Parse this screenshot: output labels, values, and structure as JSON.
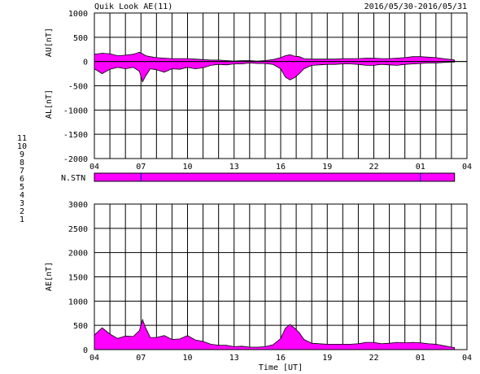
{
  "header": {
    "title": "Quik Look AE(11)",
    "date_range": "2016/05/30-2016/05/31"
  },
  "colors": {
    "fill": "#ff00ff",
    "axis": "#000000",
    "grid": "#000000"
  },
  "stations": {
    "label": "N.STN",
    "legend": [
      {
        "num": "11",
        "color": "#00e0e0"
      },
      {
        "num": "10",
        "color": "#ff00ff"
      },
      {
        "num": "9",
        "color": "#0000ff"
      },
      {
        "num": "8",
        "color": "#ffd000"
      },
      {
        "num": "7",
        "color": "#a0e000"
      },
      {
        "num": "6",
        "color": "#e00000"
      },
      {
        "num": "5",
        "color": "#c0c0c0"
      },
      {
        "num": "4",
        "color": "#a0a0a0"
      },
      {
        "num": "3",
        "color": "#00a0a0"
      },
      {
        "num": "2",
        "color": "#a000a0"
      },
      {
        "num": "1",
        "color": "#0000c0"
      }
    ]
  },
  "chart_data": [
    {
      "type": "area",
      "panel": "AU/AL",
      "ylabel_top": "AU[nT]",
      "ylabel_bottom": "AL[nT]",
      "ylim": [
        -2000,
        1000
      ],
      "yticks": [
        1000,
        500,
        0,
        -500,
        -1000,
        -1500,
        -2000
      ],
      "x_ticklabels": [
        "04",
        "07",
        "10",
        "13",
        "16",
        "19",
        "22",
        "01",
        "04"
      ],
      "x_hours": [
        4,
        7,
        10,
        13,
        16,
        19,
        22,
        25,
        28
      ],
      "grid": true,
      "x": [
        4.0,
        4.5,
        5.0,
        5.5,
        6.0,
        6.5,
        6.9,
        7.1,
        7.3,
        7.6,
        8.0,
        8.5,
        9.0,
        9.5,
        10.0,
        10.5,
        11.0,
        11.5,
        12.0,
        12.5,
        13.0,
        13.5,
        14.0,
        14.5,
        15.0,
        15.5,
        16.0,
        16.3,
        16.6,
        16.9,
        17.2,
        17.5,
        18.0,
        18.5,
        19.0,
        19.5,
        20.0,
        20.5,
        21.0,
        21.5,
        22.0,
        22.5,
        23.0,
        23.5,
        24.0,
        24.5,
        25.0,
        25.5,
        26.0,
        26.5,
        27.0,
        27.2
      ],
      "series": [
        {
          "name": "AU",
          "values": [
            150,
            170,
            160,
            120,
            130,
            150,
            190,
            160,
            120,
            100,
            80,
            70,
            60,
            60,
            60,
            50,
            40,
            30,
            30,
            20,
            10,
            20,
            20,
            10,
            20,
            40,
            80,
            120,
            140,
            110,
            100,
            60,
            50,
            50,
            50,
            50,
            60,
            60,
            60,
            70,
            70,
            60,
            60,
            70,
            80,
            100,
            100,
            90,
            80,
            60,
            40,
            30
          ]
        },
        {
          "name": "AL",
          "values": [
            -150,
            -250,
            -160,
            -120,
            -150,
            -120,
            -200,
            -420,
            -300,
            -150,
            -170,
            -220,
            -150,
            -160,
            -120,
            -150,
            -130,
            -80,
            -60,
            -70,
            -50,
            -50,
            -30,
            -40,
            -40,
            -60,
            -150,
            -320,
            -380,
            -330,
            -250,
            -150,
            -80,
            -70,
            -60,
            -60,
            -50,
            -50,
            -60,
            -80,
            -80,
            -60,
            -70,
            -80,
            -60,
            -50,
            -40,
            -30,
            -30,
            -20,
            -10,
            -10
          ]
        }
      ]
    },
    {
      "type": "area",
      "panel": "AE",
      "ylabel": "AE[nT]",
      "xlabel": "Time [UT]",
      "ylim": [
        0,
        3000
      ],
      "yticks": [
        3000,
        2500,
        2000,
        1500,
        1000,
        500,
        0
      ],
      "x_ticklabels": [
        "04",
        "07",
        "10",
        "13",
        "16",
        "19",
        "22",
        "01",
        "04"
      ],
      "x_hours": [
        4,
        7,
        10,
        13,
        16,
        19,
        22,
        25,
        28
      ],
      "grid": true,
      "x": [
        4.0,
        4.5,
        5.0,
        5.5,
        6.0,
        6.5,
        6.9,
        7.1,
        7.3,
        7.6,
        8.0,
        8.5,
        9.0,
        9.5,
        10.0,
        10.5,
        11.0,
        11.5,
        12.0,
        12.5,
        13.0,
        13.5,
        14.0,
        14.5,
        15.0,
        15.5,
        16.0,
        16.3,
        16.6,
        16.9,
        17.2,
        17.5,
        18.0,
        18.5,
        19.0,
        19.5,
        20.0,
        20.5,
        21.0,
        21.5,
        22.0,
        22.5,
        23.0,
        23.5,
        24.0,
        24.5,
        25.0,
        25.5,
        26.0,
        26.5,
        27.0,
        27.2
      ],
      "series": [
        {
          "name": "AE",
          "values": [
            300,
            450,
            320,
            230,
            280,
            270,
            390,
            620,
            450,
            250,
            250,
            290,
            210,
            220,
            290,
            200,
            170,
            110,
            90,
            90,
            60,
            70,
            50,
            50,
            60,
            100,
            230,
            440,
            520,
            440,
            350,
            210,
            130,
            120,
            110,
            110,
            110,
            110,
            120,
            150,
            150,
            120,
            130,
            150,
            140,
            150,
            140,
            120,
            110,
            80,
            50,
            40
          ]
        }
      ]
    }
  ]
}
